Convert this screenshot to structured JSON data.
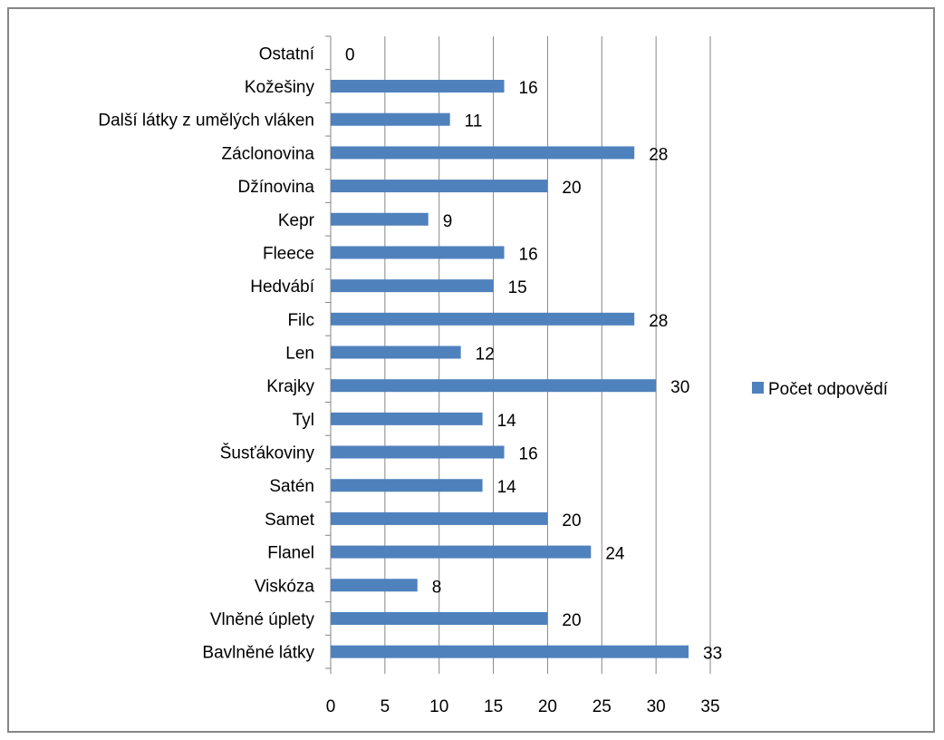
{
  "chart_data": {
    "type": "bar",
    "orientation": "horizontal",
    "title": "",
    "xlabel": "",
    "ylabel": "",
    "categories": [
      "Bavlněné látky",
      "Vlněné úplety",
      "Viskóza",
      "Flanel",
      "Samet",
      "Satén",
      "Šusťákoviny",
      "Tyl",
      "Krajky",
      "Len",
      "Filc",
      "Hedvábí",
      "Fleece",
      "Kepr",
      "Džínovina",
      "Záclonovina",
      "Další látky z umělých vláken",
      "Kožešiny",
      "Ostatní"
    ],
    "series": [
      {
        "name": "Počet odpovědí",
        "values": [
          33,
          20,
          8,
          24,
          20,
          14,
          16,
          14,
          30,
          12,
          28,
          15,
          16,
          9,
          20,
          28,
          11,
          16,
          0
        ]
      }
    ],
    "xlim": [
      0,
      35
    ],
    "xticks": [
      "0",
      "5",
      "10",
      "15",
      "20",
      "25",
      "30",
      "35"
    ],
    "grid": "vertical",
    "legend": "right",
    "data_labels": true,
    "colors": {
      "bar": "#4F81BD",
      "grid": "#868686",
      "axis": "#868686",
      "frame": "#868686"
    }
  }
}
